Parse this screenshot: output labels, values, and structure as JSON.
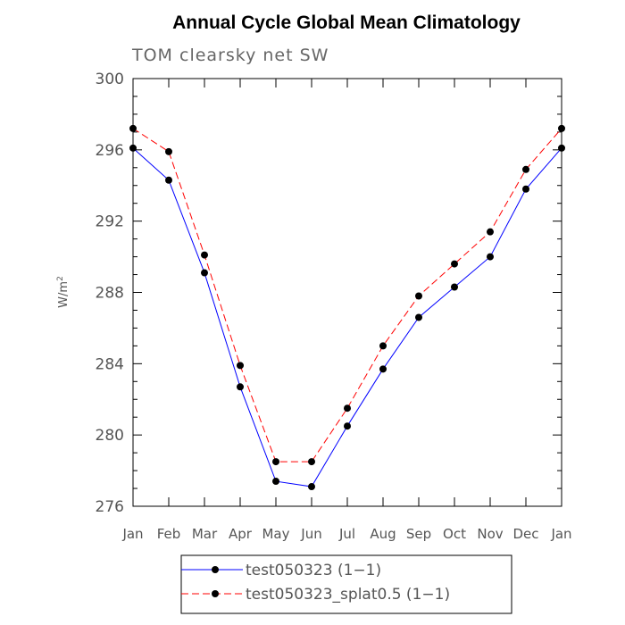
{
  "chart_data": {
    "type": "line",
    "title": "Annual Cycle Global Mean Climatology",
    "subtitle": "TOM clearsky net SW",
    "ylabel": "W/m",
    "ylabel_superscript": "2",
    "xlabel": "",
    "categories": [
      "Jan",
      "Feb",
      "Mar",
      "Apr",
      "May",
      "Jun",
      "Jul",
      "Aug",
      "Sep",
      "Oct",
      "Nov",
      "Dec",
      "Jan"
    ],
    "ylim": [
      276,
      300
    ],
    "yticks": [
      276,
      280,
      284,
      288,
      292,
      296,
      300
    ],
    "grid": false,
    "legend_position": "bottom",
    "series": [
      {
        "name": "test050323 (1−1)",
        "color": "#0000ff",
        "dash": "solid",
        "marker": "filled-circle",
        "values": [
          296.1,
          294.3,
          289.1,
          282.7,
          277.4,
          277.1,
          280.5,
          283.7,
          286.6,
          288.3,
          290.0,
          293.8,
          296.1
        ]
      },
      {
        "name": "test050323_splat0.5 (1−1)",
        "color": "#ff0000",
        "dash": "dashed",
        "marker": "filled-circle",
        "values": [
          297.2,
          295.9,
          290.1,
          283.9,
          278.5,
          278.5,
          281.5,
          285.0,
          287.8,
          289.6,
          291.4,
          294.9,
          297.2
        ]
      }
    ]
  }
}
